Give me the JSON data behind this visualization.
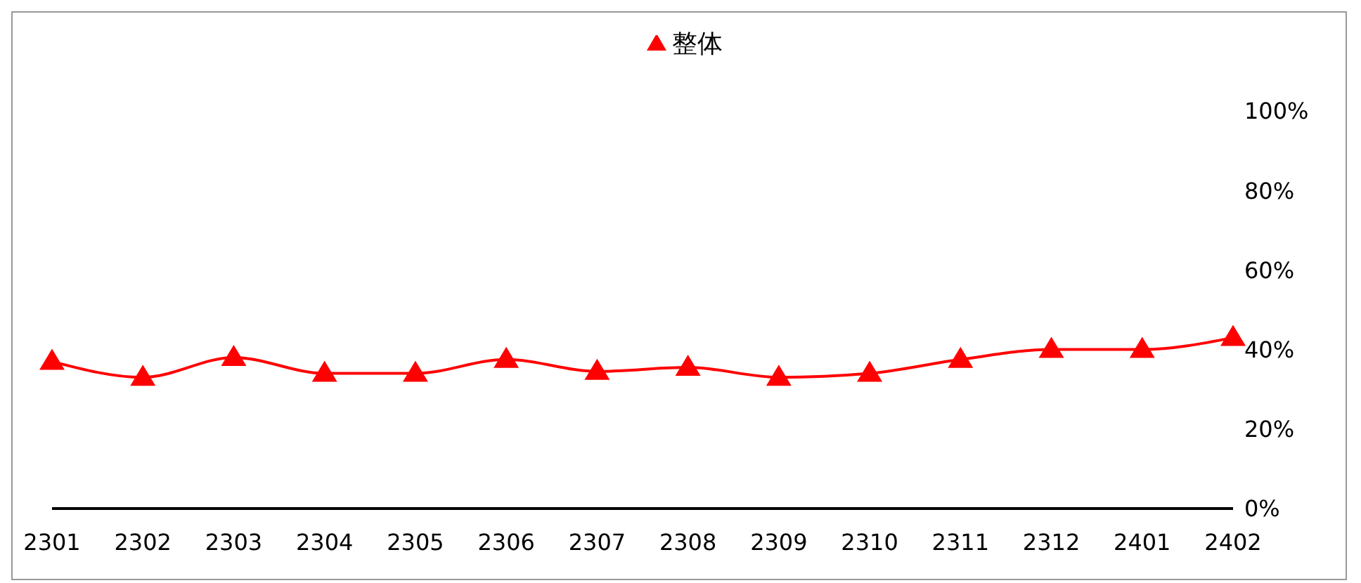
{
  "chart_data": {
    "type": "line",
    "categories": [
      "2301",
      "2302",
      "2303",
      "2304",
      "2305",
      "2306",
      "2307",
      "2308",
      "2309",
      "2310",
      "2311",
      "2312",
      "2401",
      "2402"
    ],
    "series": [
      {
        "name": "整体",
        "color": "#ff0000",
        "values": [
          37,
          33,
          38,
          34,
          34,
          37.5,
          34.5,
          35.5,
          33,
          34,
          37.5,
          40,
          40,
          43
        ]
      }
    ],
    "ylim": [
      0,
      100
    ],
    "yticks": [
      {
        "value": 0,
        "label": "0%"
      },
      {
        "value": 20,
        "label": "20%"
      },
      {
        "value": 40,
        "label": "40%"
      },
      {
        "value": 60,
        "label": "60%"
      },
      {
        "value": 80,
        "label": "80%"
      },
      {
        "value": 100,
        "label": "100%"
      }
    ],
    "grid": false,
    "legend": "top",
    "marker": "triangle",
    "line_style": "solid"
  }
}
